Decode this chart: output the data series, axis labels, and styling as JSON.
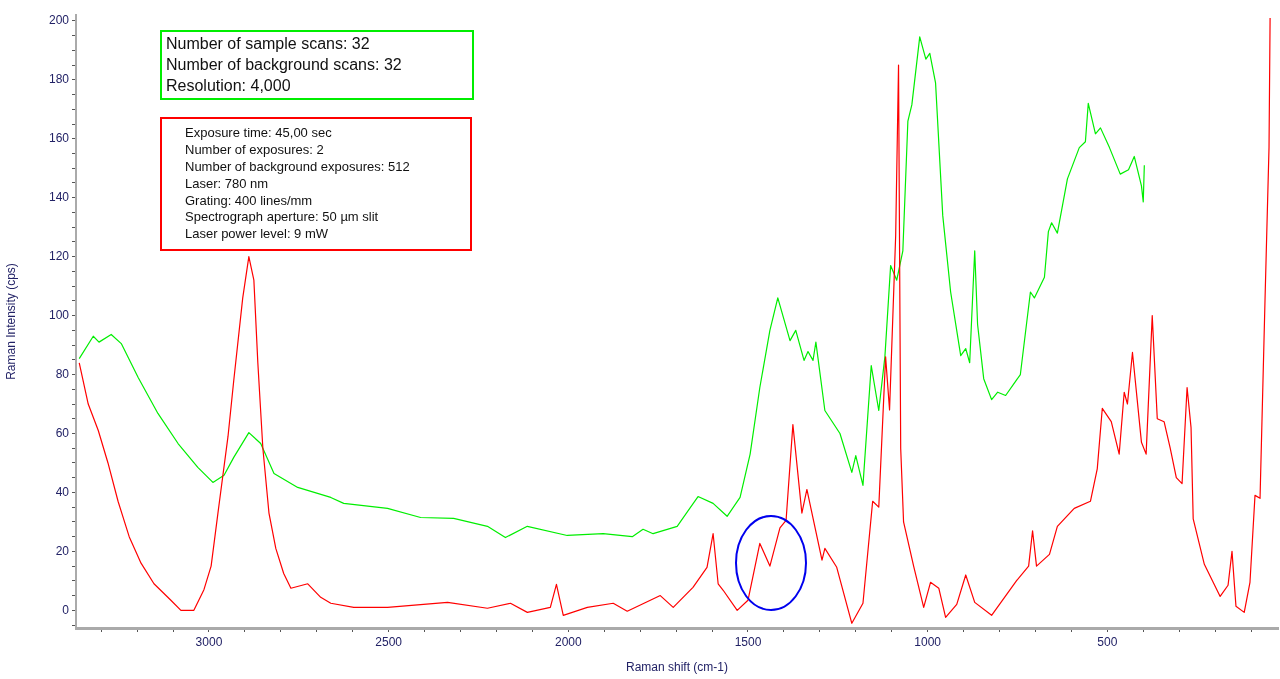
{
  "chart_data": {
    "type": "line",
    "xlabel": "Raman shift (cm-1)",
    "ylabel": "Raman Intensity (cps)",
    "xlim": [
      3370,
      25
    ],
    "ylim": [
      -6,
      202
    ],
    "xticks": [
      {
        "value": 3300,
        "label": null
      },
      {
        "value": 3200,
        "label": null
      },
      {
        "value": 3100,
        "label": null
      },
      3000,
      {
        "value": 2900,
        "label": null
      },
      {
        "value": 2800,
        "label": null
      },
      {
        "value": 2700,
        "label": null
      },
      {
        "value": 2600,
        "label": null
      },
      2500,
      {
        "value": 2400,
        "label": null
      },
      {
        "value": 2300,
        "label": null
      },
      {
        "value": 2200,
        "label": null
      },
      {
        "value": 2100,
        "label": null
      },
      2000,
      {
        "value": 1900,
        "label": null
      },
      {
        "value": 1800,
        "label": null
      },
      {
        "value": 1700,
        "label": null
      },
      {
        "value": 1600,
        "label": null
      },
      1500,
      {
        "value": 1400,
        "label": null
      },
      {
        "value": 1300,
        "label": null
      },
      {
        "value": 1200,
        "label": null
      },
      {
        "value": 1100,
        "label": null
      },
      1000,
      {
        "value": 900,
        "label": null
      },
      {
        "value": 800,
        "label": null
      },
      {
        "value": 700,
        "label": null
      },
      {
        "value": 600,
        "label": null
      },
      500,
      {
        "value": 400,
        "label": null
      },
      {
        "value": 300,
        "label": null
      },
      {
        "value": 200,
        "label": null
      },
      {
        "value": 100,
        "label": null
      }
    ],
    "yticks": [
      {
        "value": -5,
        "label": null
      },
      0,
      {
        "value": 5,
        "label": null
      },
      {
        "value": 10,
        "label": null
      },
      {
        "value": 15,
        "label": null
      },
      20,
      {
        "value": 25,
        "label": null
      },
      {
        "value": 30,
        "label": null
      },
      {
        "value": 35,
        "label": null
      },
      40,
      {
        "value": 45,
        "label": null
      },
      {
        "value": 50,
        "label": null
      },
      {
        "value": 55,
        "label": null
      },
      60,
      {
        "value": 65,
        "label": null
      },
      {
        "value": 70,
        "label": null
      },
      {
        "value": 75,
        "label": null
      },
      80,
      {
        "value": 85,
        "label": null
      },
      {
        "value": 90,
        "label": null
      },
      {
        "value": 95,
        "label": null
      },
      100,
      {
        "value": 105,
        "label": null
      },
      {
        "value": 110,
        "label": null
      },
      {
        "value": 115,
        "label": null
      },
      120,
      {
        "value": 125,
        "label": null
      },
      {
        "value": 130,
        "label": null
      },
      {
        "value": 135,
        "label": null
      },
      140,
      {
        "value": 145,
        "label": null
      },
      {
        "value": 150,
        "label": null
      },
      {
        "value": 155,
        "label": null
      },
      160,
      {
        "value": 165,
        "label": null
      },
      {
        "value": 170,
        "label": null
      },
      {
        "value": 175,
        "label": null
      },
      180,
      {
        "value": 185,
        "label": null
      },
      {
        "value": 190,
        "label": null
      },
      {
        "value": 195,
        "label": null
      },
      200
    ],
    "series": [
      {
        "color": "#ff0000",
        "x": [
          3361,
          3336,
          3308,
          3281,
          3253,
          3222,
          3189,
          3153,
          3106,
          3078,
          3042,
          3014,
          2994,
          2975,
          2947,
          2931,
          2906,
          2889,
          2875,
          2864,
          2850,
          2833,
          2814,
          2792,
          2772,
          2725,
          2689,
          2661,
          2597,
          2503,
          2336,
          2225,
          2161,
          2114,
          2050,
          2033,
          2014,
          1947,
          1875,
          1836,
          1744,
          1708,
          1653,
          1614,
          1597,
          1583,
          1569,
          1530,
          1500,
          1467,
          1439,
          1411,
          1394,
          1375,
          1350,
          1336,
          1294,
          1286,
          1253,
          1211,
          1180,
          1153,
          1136,
          1117,
          1106,
          1089,
          1081,
          1075,
          1067,
          1039,
          1011,
          992,
          969,
          950,
          919,
          894,
          869,
          822,
          753,
          719,
          708,
          697,
          661,
          639,
          592,
          547,
          528,
          514,
          489,
          467,
          453,
          444,
          430,
          405,
          392,
          375,
          361,
          342,
          325,
          308,
          292,
          278,
          267,
          261,
          230,
          186,
          164,
          153,
          142,
          119,
          103,
          89,
          75,
          61,
          50,
          47
        ],
        "values": [
          84,
          70,
          61,
          50,
          37,
          25,
          16,
          9,
          3.4,
          0,
          0,
          7,
          15,
          33,
          59,
          78,
          106,
          120,
          112,
          84,
          55,
          33,
          21,
          12.5,
          7.5,
          9,
          4.4,
          2.4,
          1,
          1,
          2.7,
          0.7,
          2.4,
          -0.7,
          1,
          8.8,
          -1.7,
          1,
          2.4,
          -0.3,
          5,
          1,
          7.8,
          14.6,
          26,
          9,
          6.8,
          0,
          3.4,
          22.7,
          15,
          28,
          30.5,
          63,
          33,
          41,
          17,
          21,
          14.6,
          -4.4,
          2.4,
          37,
          35,
          86,
          68,
          127,
          185,
          55,
          30,
          15,
          1,
          9.5,
          7.5,
          -2.4,
          2,
          12,
          2.7,
          -1.7,
          10,
          15,
          27,
          15,
          19,
          28.5,
          34.6,
          37,
          48,
          68.5,
          64,
          53,
          74,
          70,
          87.5,
          57,
          53,
          100,
          65,
          64,
          55,
          45,
          43,
          75.6,
          62,
          31,
          15.6,
          4.7,
          8.5,
          20,
          1.4,
          -0.7,
          9.5,
          39,
          38,
          106,
          157,
          201
        ]
      },
      {
        "color": "#00ee00",
        "x": [
          3361,
          3322,
          3306,
          3272,
          3244,
          3197,
          3142,
          3086,
          3031,
          2989,
          2958,
          2931,
          2889,
          2856,
          2819,
          2753,
          2661,
          2625,
          2503,
          2411,
          2319,
          2225,
          2175,
          2114,
          2003,
          1903,
          1822,
          1792,
          1764,
          1697,
          1639,
          1597,
          1558,
          1522,
          1494,
          1467,
          1439,
          1417,
          1383,
          1367,
          1344,
          1333,
          1319,
          1311,
          1286,
          1244,
          1211,
          1200,
          1180,
          1157,
          1136,
          1119,
          1103,
          1086,
          1069,
          1055,
          1044,
          1022,
          1005,
          994,
          978,
          958,
          936,
          908,
          894,
          883,
          869,
          861,
          844,
          822,
          805,
          783,
          742,
          714,
          703,
          675,
          664,
          655,
          639,
          611,
          578,
          561,
          553,
          533,
          519,
          494,
          464,
          441,
          425,
          405,
          400,
          397
        ],
        "values": [
          85.4,
          93,
          91,
          93.6,
          90.5,
          79,
          66.8,
          56.6,
          48.5,
          43.4,
          45.8,
          51.9,
          60.3,
          56.6,
          46.4,
          41.7,
          38.3,
          36.3,
          34.6,
          31.5,
          31.2,
          28.5,
          24.7,
          28.5,
          25.4,
          26,
          25,
          27.5,
          26,
          28.5,
          38.6,
          36.3,
          31.9,
          38.3,
          53,
          75.6,
          95,
          106,
          91.5,
          95,
          84.8,
          87.8,
          84.8,
          91,
          67.8,
          60,
          46.8,
          52.5,
          42.4,
          83,
          67.8,
          86,
          117,
          112,
          122,
          166,
          171.5,
          194.6,
          187,
          189,
          179,
          134,
          108,
          86.4,
          88.8,
          84,
          122,
          97,
          78.6,
          71.5,
          74,
          72.9,
          80,
          108,
          106,
          113,
          128.5,
          131.5,
          128,
          146.4,
          157,
          159,
          172,
          161.7,
          163.7,
          157,
          148,
          149.5,
          154,
          144,
          138.6,
          151
        ]
      }
    ],
    "annotations": [
      "Number of sample scans:  32\nNumber of background scans:  32\nResolution:   4,000",
      "Exposure time: 45,00 sec\nNumber of exposures: 2\nNumber of background exposures: 512\nLaser: 780 nm\nGrating: 400 lines/mm\nSpectrograph aperture:  50 µm slit\nLaser power level:  9   mW"
    ]
  }
}
